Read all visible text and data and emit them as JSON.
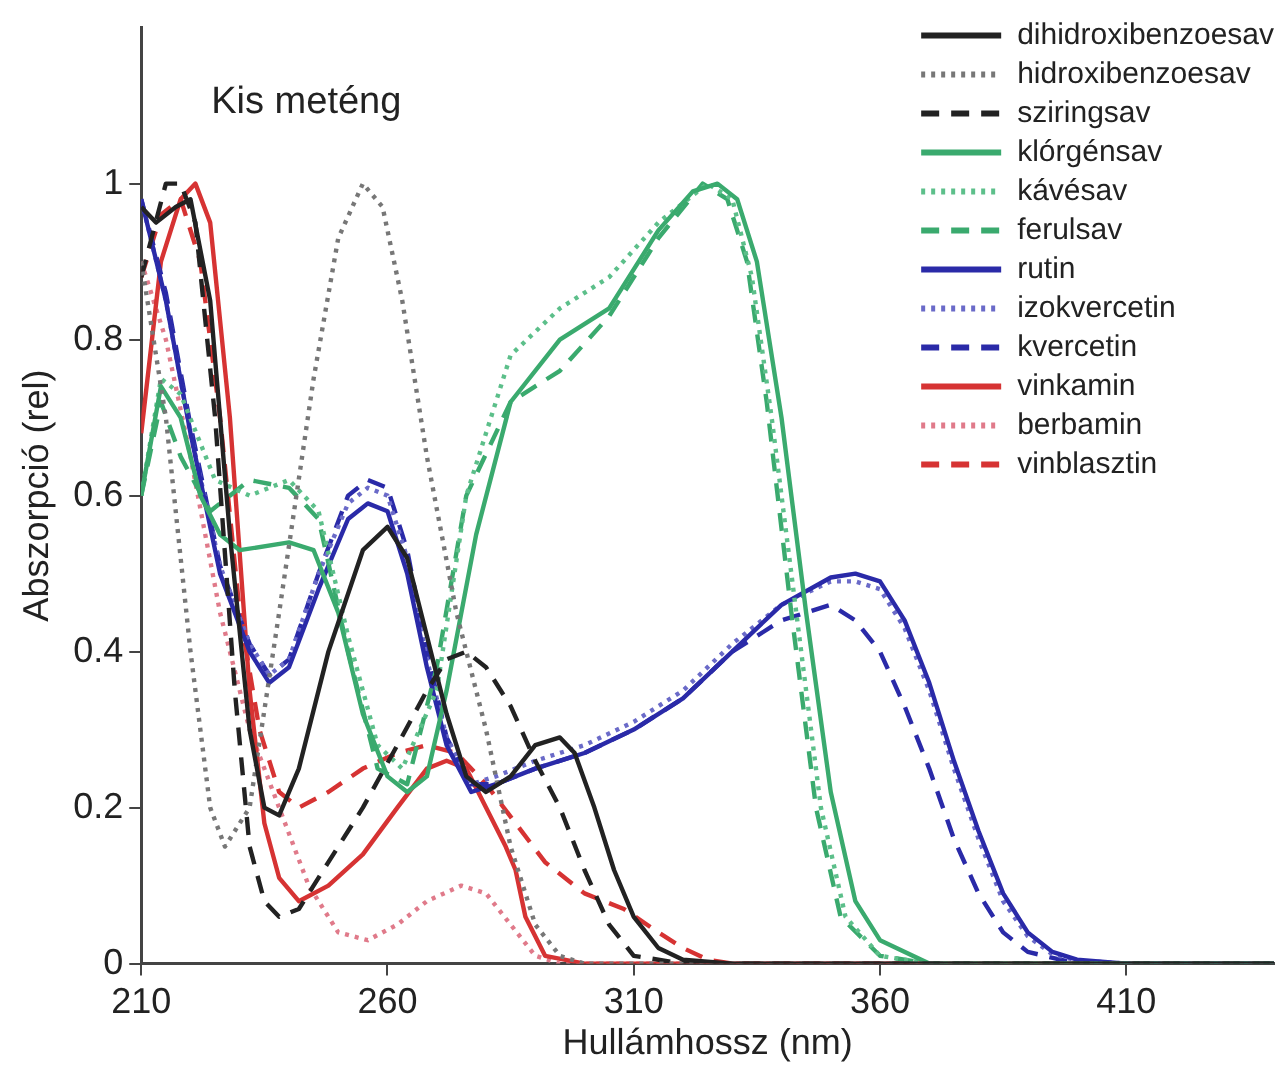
{
  "chart_data": {
    "type": "line",
    "title": "Kis meténg",
    "xlabel": "Hullámhossz (nm)",
    "ylabel": "Abszorpció (rel)",
    "xlim": [
      210,
      440
    ],
    "xticks": [
      210,
      260,
      310,
      360,
      410
    ],
    "ylim": [
      0,
      1.2
    ],
    "yticks": [
      0,
      0.2,
      0.4,
      0.6,
      0.8,
      1
    ],
    "grid": false,
    "legend": "top right",
    "marker": "none",
    "series": [
      {
        "name": "dihidroxibenzoesav",
        "color": "#222222",
        "line_style": "solid",
        "x": [
          210,
          213,
          217,
          220,
          224,
          228,
          232,
          235,
          238,
          242,
          248,
          255,
          260,
          264,
          268,
          272,
          276,
          280,
          285,
          290,
          295,
          298,
          302,
          306,
          310,
          315,
          320,
          330,
          440
        ],
        "values": [
          0.97,
          0.95,
          0.97,
          0.98,
          0.85,
          0.55,
          0.3,
          0.2,
          0.19,
          0.25,
          0.4,
          0.53,
          0.56,
          0.52,
          0.42,
          0.32,
          0.24,
          0.22,
          0.24,
          0.28,
          0.29,
          0.27,
          0.2,
          0.12,
          0.06,
          0.02,
          0.005,
          0,
          0
        ]
      },
      {
        "name": "hidroxibenzoesav",
        "color": "#777777",
        "line_style": "dotted",
        "x": [
          210,
          215,
          220,
          224,
          227,
          232,
          238,
          245,
          250,
          255,
          259,
          263,
          268,
          274,
          280,
          285,
          290,
          295,
          300,
          440
        ],
        "values": [
          0.9,
          0.7,
          0.4,
          0.2,
          0.15,
          0.2,
          0.45,
          0.75,
          0.93,
          1,
          0.97,
          0.85,
          0.65,
          0.45,
          0.3,
          0.15,
          0.05,
          0.01,
          0,
          0
        ]
      },
      {
        "name": "sziringsav",
        "color": "#222222",
        "line_style": "dashed",
        "x": [
          210,
          215,
          218,
          221,
          225,
          229,
          232,
          235,
          238,
          242,
          248,
          255,
          262,
          268,
          272,
          276,
          280,
          285,
          290,
          295,
          300,
          305,
          310,
          320,
          440
        ],
        "values": [
          0.88,
          1,
          1,
          0.95,
          0.7,
          0.35,
          0.15,
          0.08,
          0.06,
          0.07,
          0.13,
          0.2,
          0.28,
          0.35,
          0.39,
          0.4,
          0.38,
          0.33,
          0.26,
          0.2,
          0.12,
          0.05,
          0.01,
          0,
          0
        ]
      },
      {
        "name": "klórgénsav",
        "color": "#3aaa6e",
        "line_style": "solid",
        "x": [
          210,
          214,
          218,
          222,
          226,
          230,
          240,
          245,
          250,
          255,
          260,
          264,
          268,
          272,
          278,
          285,
          295,
          305,
          315,
          322,
          327,
          331,
          335,
          340,
          345,
          350,
          355,
          360,
          370,
          440
        ],
        "values": [
          0.6,
          0.74,
          0.7,
          0.6,
          0.55,
          0.53,
          0.54,
          0.53,
          0.45,
          0.32,
          0.24,
          0.22,
          0.24,
          0.35,
          0.55,
          0.72,
          0.8,
          0.84,
          0.94,
          0.99,
          1,
          0.98,
          0.9,
          0.7,
          0.45,
          0.22,
          0.08,
          0.03,
          0,
          0
        ]
      },
      {
        "name": "kávésav",
        "color": "#5cbf8a",
        "line_style": "dotted",
        "x": [
          210,
          214,
          218,
          225,
          232,
          240,
          246,
          252,
          258,
          263,
          270,
          276,
          285,
          295,
          305,
          315,
          325,
          330,
          334,
          338,
          343,
          348,
          353,
          360,
          370,
          440
        ],
        "values": [
          0.6,
          0.75,
          0.73,
          0.62,
          0.6,
          0.62,
          0.58,
          0.42,
          0.28,
          0.25,
          0.35,
          0.6,
          0.78,
          0.84,
          0.88,
          0.95,
          1,
          0.98,
          0.88,
          0.7,
          0.45,
          0.2,
          0.06,
          0.01,
          0,
          0
        ]
      },
      {
        "name": "ferulsav",
        "color": "#3aaa6e",
        "line_style": "dashed",
        "x": [
          210,
          214,
          218,
          224,
          232,
          240,
          246,
          252,
          258,
          264,
          270,
          276,
          285,
          295,
          305,
          315,
          324,
          329,
          333,
          337,
          342,
          347,
          352,
          360,
          370,
          440
        ],
        "values": [
          0.6,
          0.72,
          0.65,
          0.58,
          0.62,
          0.61,
          0.57,
          0.4,
          0.25,
          0.23,
          0.38,
          0.6,
          0.72,
          0.76,
          0.83,
          0.93,
          1,
          0.98,
          0.9,
          0.72,
          0.45,
          0.2,
          0.06,
          0.01,
          0,
          0
        ]
      },
      {
        "name": "rutin",
        "color": "#2a2aa8",
        "line_style": "solid",
        "x": [
          210,
          215,
          220,
          226,
          232,
          236,
          240,
          246,
          252,
          256,
          260,
          264,
          268,
          272,
          277,
          282,
          290,
          300,
          310,
          320,
          330,
          340,
          350,
          355,
          360,
          365,
          370,
          375,
          380,
          385,
          390,
          395,
          400,
          410,
          440
        ],
        "values": [
          0.98,
          0.85,
          0.68,
          0.5,
          0.4,
          0.36,
          0.38,
          0.48,
          0.57,
          0.59,
          0.58,
          0.5,
          0.38,
          0.28,
          0.22,
          0.23,
          0.25,
          0.27,
          0.3,
          0.34,
          0.4,
          0.46,
          0.495,
          0.5,
          0.49,
          0.44,
          0.36,
          0.26,
          0.17,
          0.09,
          0.04,
          0.015,
          0.005,
          0,
          0
        ]
      },
      {
        "name": "izokvercetin",
        "color": "#6a6ac8",
        "line_style": "dotted",
        "x": [
          210,
          215,
          220,
          226,
          232,
          236,
          240,
          246,
          252,
          256,
          260,
          264,
          268,
          272,
          277,
          282,
          290,
          300,
          310,
          320,
          330,
          340,
          350,
          355,
          360,
          365,
          370,
          375,
          380,
          385,
          390,
          395,
          400,
          410,
          440
        ],
        "values": [
          0.98,
          0.85,
          0.68,
          0.51,
          0.41,
          0.37,
          0.39,
          0.5,
          0.59,
          0.61,
          0.6,
          0.52,
          0.39,
          0.29,
          0.23,
          0.24,
          0.26,
          0.28,
          0.31,
          0.35,
          0.41,
          0.46,
          0.49,
          0.49,
          0.48,
          0.43,
          0.35,
          0.25,
          0.16,
          0.08,
          0.035,
          0.012,
          0.004,
          0,
          0
        ]
      },
      {
        "name": "kvercetin",
        "color": "#2a2aa8",
        "line_style": "dashed",
        "x": [
          210,
          215,
          220,
          226,
          232,
          236,
          240,
          246,
          252,
          256,
          260,
          264,
          268,
          272,
          277,
          282,
          290,
          300,
          310,
          320,
          330,
          340,
          350,
          355,
          360,
          365,
          370,
          375,
          380,
          385,
          390,
          400,
          440
        ],
        "values": [
          0.98,
          0.86,
          0.69,
          0.51,
          0.41,
          0.37,
          0.39,
          0.5,
          0.6,
          0.62,
          0.61,
          0.53,
          0.4,
          0.29,
          0.23,
          0.23,
          0.25,
          0.27,
          0.3,
          0.34,
          0.4,
          0.44,
          0.46,
          0.44,
          0.4,
          0.33,
          0.25,
          0.16,
          0.09,
          0.04,
          0.015,
          0,
          0
        ]
      },
      {
        "name": "vinkamin",
        "color": "#d63333",
        "line_style": "solid",
        "x": [
          210,
          214,
          218,
          221,
          224,
          228,
          232,
          235,
          238,
          242,
          248,
          255,
          262,
          268,
          272,
          276,
          280,
          284,
          286,
          288,
          292,
          300,
          440
        ],
        "values": [
          0.68,
          0.9,
          0.98,
          1,
          0.95,
          0.7,
          0.35,
          0.18,
          0.11,
          0.08,
          0.1,
          0.14,
          0.2,
          0.25,
          0.26,
          0.25,
          0.2,
          0.15,
          0.12,
          0.06,
          0.01,
          0,
          0
        ]
      },
      {
        "name": "berbamin",
        "color": "#e07a8a",
        "line_style": "dotted",
        "x": [
          210,
          215,
          220,
          226,
          232,
          238,
          244,
          250,
          256,
          262,
          268,
          275,
          280,
          285,
          290,
          295,
          440
        ],
        "values": [
          0.9,
          0.8,
          0.65,
          0.45,
          0.3,
          0.2,
          0.1,
          0.04,
          0.03,
          0.05,
          0.08,
          0.1,
          0.09,
          0.05,
          0.01,
          0,
          0
        ]
      },
      {
        "name": "vinblasztin",
        "color": "#d63333",
        "line_style": "dashed",
        "x": [
          210,
          214,
          218,
          222,
          226,
          230,
          234,
          238,
          242,
          248,
          255,
          262,
          268,
          274,
          280,
          286,
          292,
          300,
          308,
          315,
          320,
          325,
          330,
          440
        ],
        "values": [
          0.88,
          0.96,
          0.98,
          0.9,
          0.7,
          0.45,
          0.3,
          0.22,
          0.2,
          0.22,
          0.25,
          0.27,
          0.28,
          0.27,
          0.23,
          0.18,
          0.13,
          0.09,
          0.07,
          0.04,
          0.02,
          0.005,
          0,
          0
        ]
      }
    ]
  }
}
